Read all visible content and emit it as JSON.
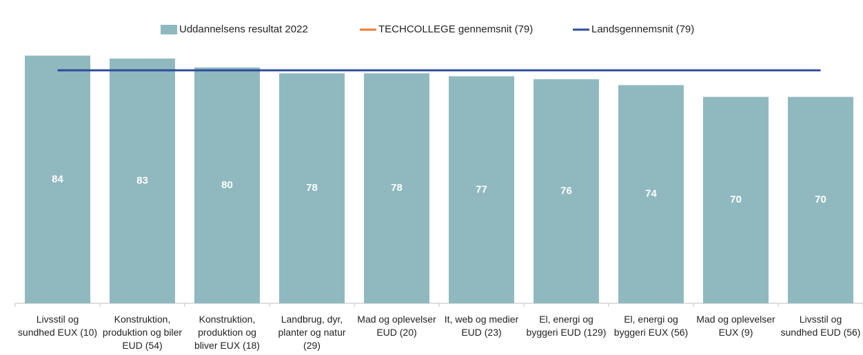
{
  "chart_data": {
    "type": "bar",
    "categories": [
      "Livsstil og sundhed EUX (10)",
      "Konstruktion, produktion og biler EUD (54)",
      "Konstruktion, produktion og bliver EUX (18)",
      "Landbrug, dyr, planter og natur (29)",
      "Mad og oplevelser EUD (20)",
      "It, web og medier EUD (23)",
      "El, energi og byggeri EUD (129)",
      "El, energi og byggeri EUX (56)",
      "Mad og oplevelser EUX (9)",
      "Livsstil og sundhed EUD (56)"
    ],
    "series": [
      {
        "name": "Uddannelsens resultat 2022",
        "type": "bar",
        "color": "#8fb9bf",
        "values": [
          84,
          83,
          80,
          78,
          78,
          77,
          76,
          74,
          70,
          70
        ]
      },
      {
        "name": "TECHCOLLEGE gennemsnit (79)",
        "type": "line",
        "color": "#ed7d31",
        "values": [
          79,
          79,
          79,
          79,
          79,
          79,
          79,
          79,
          79,
          79
        ]
      },
      {
        "name": "Landsgennemsnit (79)",
        "type": "line",
        "color": "#2f4b9c",
        "values": [
          79,
          79,
          79,
          79,
          79,
          79,
          79,
          79,
          79,
          79
        ]
      }
    ],
    "ylim": [
      0,
      90
    ],
    "legend": "top"
  }
}
